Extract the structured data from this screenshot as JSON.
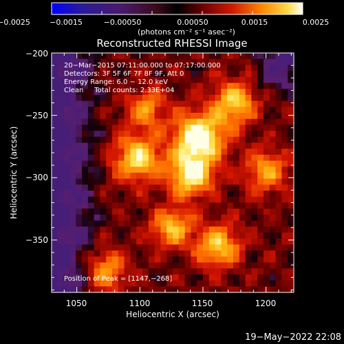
{
  "chart_data": {
    "type": "heatmap",
    "title": "Reconstructed RHESSI Image",
    "xlabel": "Heliocentric X (arcsec)",
    "ylabel": "Heliocentric Y (arcsec)",
    "xlim": [
      1030,
      1222
    ],
    "ylim": [
      -392,
      -200
    ],
    "xticks": [
      1050,
      1100,
      1150,
      1200
    ],
    "yticks": [
      -200,
      -250,
      -300,
      -350
    ],
    "xtick_labels": [
      "1050",
      "1100",
      "1150",
      "1200"
    ],
    "ytick_labels": [
      "−200",
      "−250",
      "−300",
      "−350"
    ],
    "colorscale": "red-temperature (blue-purple-red-orange-yellow-white)",
    "colorbar": {
      "range": [
        -0.0025,
        0.0025
      ],
      "ticks": [
        "−0.0025",
        "−0.0015",
        "−0.00050",
        "0.00050",
        "0.0015",
        "0.0025"
      ],
      "unit_label": "(photons cm⁻² s⁻¹ asec⁻²)"
    },
    "annotations": [
      "20−Mar−2015 07:11:00.000 to 07:17:00.000",
      "Detectors: 3F 5F 6F 7F 8F 9F, Att 0",
      "Energy Range: 6.0 − 12.0 keV",
      "Clean     Total counts: 2.33E+04"
    ],
    "peak_label": "Position of Peak = [1147,−268]",
    "peak": [
      1147,
      -268
    ],
    "bright_sources": [
      {
        "x": 1147,
        "y": -268,
        "level": 1.0,
        "sigma": 14
      },
      {
        "x": 1140,
        "y": -298,
        "level": 0.85,
        "sigma": 12
      },
      {
        "x": 1098,
        "y": -285,
        "level": 0.75,
        "sigma": 13
      },
      {
        "x": 1175,
        "y": -240,
        "level": 0.7,
        "sigma": 12
      },
      {
        "x": 1162,
        "y": -355,
        "level": 0.7,
        "sigma": 12
      },
      {
        "x": 1125,
        "y": -340,
        "level": 0.65,
        "sigma": 11
      },
      {
        "x": 1072,
        "y": -375,
        "level": 0.55,
        "sigma": 12
      },
      {
        "x": 1200,
        "y": -295,
        "level": 0.55,
        "sigma": 12
      },
      {
        "x": 1105,
        "y": -245,
        "level": 0.5,
        "sigma": 11
      }
    ],
    "dim_region": "left-side and top-right corners near zero (purple)"
  },
  "footer": {
    "timestamp": "19−May−2022 22:08"
  }
}
